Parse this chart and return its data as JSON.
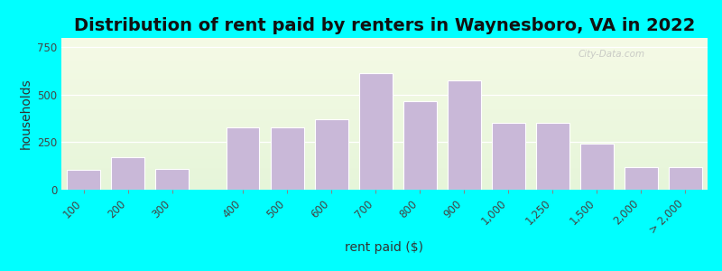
{
  "title": "Distribution of rent paid by renters in Waynesboro, VA in 2022",
  "xlabel": "rent paid ($)",
  "ylabel": "households",
  "categories": [
    "100",
    "200",
    "300",
    "400",
    "500",
    "600",
    "700",
    "800",
    "900",
    "1,000",
    "1,250",
    "1,500",
    "2,000",
    "> 2,000"
  ],
  "bar_values": [
    105,
    170,
    110,
    330,
    330,
    370,
    615,
    465,
    575,
    350,
    350,
    245,
    120,
    120
  ],
  "gap_after": [
    2
  ],
  "bar_color": "#c9b8d8",
  "bar_edge_color": "#ffffff",
  "ylim": [
    0,
    800
  ],
  "yticks": [
    0,
    250,
    500,
    750
  ],
  "outer_background": "#00ffff",
  "title_fontsize": 14,
  "axis_label_fontsize": 10,
  "tick_fontsize": 8.5
}
